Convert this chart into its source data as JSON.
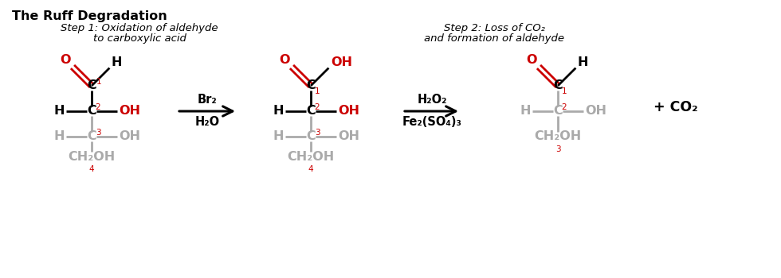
{
  "title": "The Ruff Degradation",
  "step1_line1": "Step 1: Oxidation of aldehyde",
  "step1_line2": "to carboxylic acid",
  "step2_line1": "Step 2: Loss of CO₂",
  "step2_line2": "and formation of aldehyde",
  "reagent1_top": "Br₂",
  "reagent1_bot": "H₂O",
  "reagent2_top": "H₂O₂",
  "reagent2_bot": "Fe₂(SO₄)₃",
  "co2_label": "+ CO₂",
  "black": "#000000",
  "red": "#cc0000",
  "gray": "#aaaaaa",
  "white": "#ffffff",
  "bg": "#ffffff"
}
